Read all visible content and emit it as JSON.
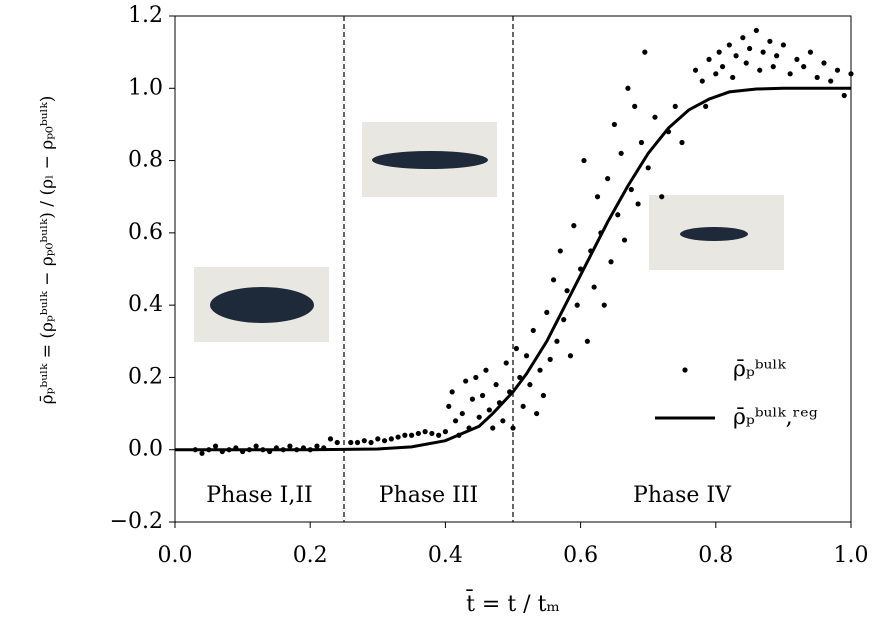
{
  "chart_data": {
    "type": "scatter",
    "xlabel": "t̄ = t / tₘ",
    "ylabel": "ρ̄ₚᵇᵘˡᵏ = (ρₚᵇᵘˡᵏ − ρₚ₀ᵇᵘˡᵏ) / (ρₗ − ρₚ₀ᵇᵘˡᵏ)",
    "xlim": [
      0,
      1
    ],
    "ylim": [
      -0.2,
      1.2
    ],
    "xticks": [
      {
        "value": 0,
        "label": "0.0"
      },
      {
        "value": 0.2,
        "label": "0.2"
      },
      {
        "value": 0.4,
        "label": "0.4"
      },
      {
        "value": 0.6,
        "label": "0.6"
      },
      {
        "value": 0.8,
        "label": "0.8"
      },
      {
        "value": 1,
        "label": "1.0"
      }
    ],
    "yticks": [
      {
        "value": -0.2,
        "label": "−0.2"
      },
      {
        "value": 0,
        "label": "0.0"
      },
      {
        "value": 0.2,
        "label": "0.2"
      },
      {
        "value": 0.4,
        "label": "0.4"
      },
      {
        "value": 0.6,
        "label": "0.6"
      },
      {
        "value": 0.8,
        "label": "0.8"
      },
      {
        "value": 1,
        "label": "1.0"
      },
      {
        "value": 1.2,
        "label": "1.2"
      }
    ],
    "vlines": [
      0.25,
      0.5
    ],
    "phases": [
      "Phase I,II",
      "Phase III",
      "Phase IV"
    ],
    "legend": "lower right",
    "series": [
      {
        "name": "ρ̄ₚᵇᵘˡᵏ",
        "color": "#000000",
        "kind": "scatter",
        "x": [
          0.03,
          0.04,
          0.05,
          0.06,
          0.07,
          0.08,
          0.09,
          0.1,
          0.11,
          0.12,
          0.13,
          0.14,
          0.15,
          0.16,
          0.17,
          0.18,
          0.19,
          0.2,
          0.21,
          0.22,
          0.23,
          0.24,
          0.26,
          0.27,
          0.28,
          0.29,
          0.3,
          0.31,
          0.32,
          0.33,
          0.34,
          0.35,
          0.36,
          0.37,
          0.38,
          0.39,
          0.4,
          0.405,
          0.41,
          0.415,
          0.42,
          0.425,
          0.43,
          0.435,
          0.44,
          0.445,
          0.45,
          0.455,
          0.46,
          0.465,
          0.47,
          0.475,
          0.48,
          0.485,
          0.49,
          0.495,
          0.5,
          0.505,
          0.51,
          0.515,
          0.52,
          0.525,
          0.53,
          0.535,
          0.54,
          0.545,
          0.55,
          0.555,
          0.56,
          0.565,
          0.57,
          0.575,
          0.58,
          0.585,
          0.59,
          0.595,
          0.6,
          0.605,
          0.61,
          0.615,
          0.62,
          0.625,
          0.63,
          0.635,
          0.64,
          0.645,
          0.65,
          0.655,
          0.66,
          0.665,
          0.67,
          0.675,
          0.68,
          0.685,
          0.69,
          0.695,
          0.7,
          0.71,
          0.72,
          0.73,
          0.74,
          0.75,
          0.77,
          0.78,
          0.785,
          0.79,
          0.8,
          0.805,
          0.81,
          0.82,
          0.825,
          0.83,
          0.84,
          0.845,
          0.85,
          0.86,
          0.865,
          0.87,
          0.88,
          0.885,
          0.89,
          0.9,
          0.91,
          0.92,
          0.93,
          0.94,
          0.95,
          0.96,
          0.97,
          0.98,
          0.99,
          1.0
        ],
        "values": [
          0.0,
          -0.01,
          0.0,
          0.01,
          -0.005,
          0.0,
          0.005,
          -0.005,
          0.0,
          0.01,
          0.0,
          -0.005,
          0.005,
          0.0,
          0.01,
          0.0,
          0.005,
          0.0,
          0.01,
          0.005,
          0.03,
          0.02,
          0.02,
          0.02,
          0.025,
          0.02,
          0.03,
          0.025,
          0.03,
          0.035,
          0.04,
          0.04,
          0.045,
          0.05,
          0.045,
          0.04,
          0.05,
          0.12,
          0.16,
          0.08,
          0.04,
          0.1,
          0.19,
          0.06,
          0.14,
          0.2,
          0.09,
          0.15,
          0.22,
          0.11,
          0.06,
          0.18,
          0.13,
          0.08,
          0.24,
          0.16,
          0.06,
          0.28,
          0.2,
          0.12,
          0.26,
          0.18,
          0.33,
          0.1,
          0.22,
          0.15,
          0.38,
          0.25,
          0.47,
          0.3,
          0.55,
          0.36,
          0.44,
          0.26,
          0.62,
          0.4,
          0.5,
          0.8,
          0.3,
          0.55,
          0.45,
          0.7,
          0.6,
          0.4,
          0.75,
          0.52,
          0.9,
          0.65,
          0.82,
          0.58,
          1.0,
          0.72,
          0.95,
          0.68,
          0.85,
          1.1,
          0.78,
          0.92,
          0.7,
          0.88,
          0.95,
          0.85,
          1.05,
          1.02,
          0.95,
          1.08,
          1.04,
          1.1,
          1.06,
          1.12,
          1.03,
          1.09,
          1.14,
          1.07,
          1.11,
          1.16,
          1.05,
          1.1,
          1.13,
          1.06,
          1.09,
          1.12,
          1.04,
          1.08,
          1.06,
          1.1,
          1.03,
          1.07,
          1.02,
          1.05,
          0.98,
          1.04
        ]
      },
      {
        "name": "ρ̄ₚᵇᵘˡᵏ,ʳᵉᵍ",
        "color": "#000000",
        "kind": "line",
        "x": [
          0,
          0.1,
          0.2,
          0.3,
          0.35,
          0.4,
          0.45,
          0.47,
          0.5,
          0.52,
          0.55,
          0.58,
          0.61,
          0.64,
          0.67,
          0.7,
          0.73,
          0.76,
          0.79,
          0.82,
          0.86,
          0.9,
          1.0
        ],
        "values": [
          0,
          0,
          0,
          0.002,
          0.008,
          0.025,
          0.065,
          0.1,
          0.16,
          0.21,
          0.3,
          0.41,
          0.52,
          0.63,
          0.73,
          0.82,
          0.89,
          0.94,
          0.97,
          0.99,
          0.998,
          1.0,
          1.0
        ]
      }
    ]
  }
}
